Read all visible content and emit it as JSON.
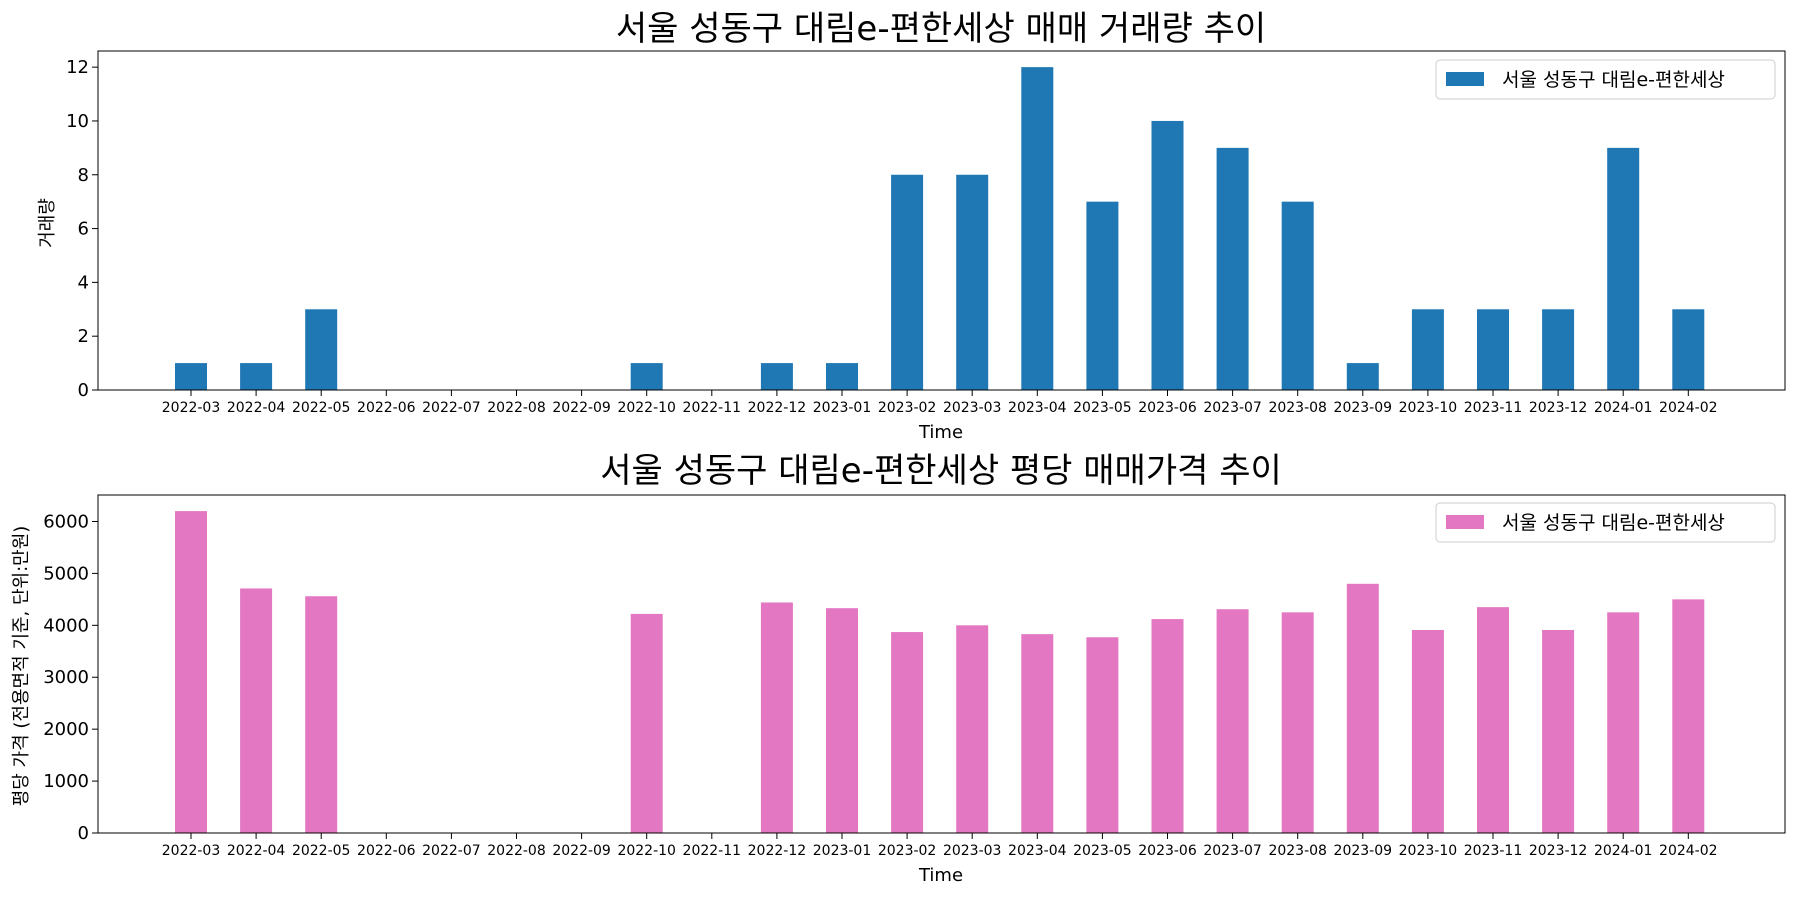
{
  "chart_data": [
    {
      "type": "bar",
      "title": "서울 성동구 대림e-편한세상 매매 거래량 추이",
      "xlabel": "Time",
      "ylabel": "거래량",
      "ylim": [
        0,
        12.6
      ],
      "yticks": [
        0,
        2,
        4,
        6,
        8,
        10,
        12
      ],
      "grid": false,
      "legend_position": "top-right",
      "color": "#1f77b4",
      "categories": [
        "2022-03",
        "2022-04",
        "2022-05",
        "2022-06",
        "2022-07",
        "2022-08",
        "2022-09",
        "2022-10",
        "2022-11",
        "2022-12",
        "2023-01",
        "2023-02",
        "2023-03",
        "2023-04",
        "2023-05",
        "2023-06",
        "2023-07",
        "2023-08",
        "2023-09",
        "2023-10",
        "2023-11",
        "2023-12",
        "2024-01",
        "2024-02"
      ],
      "series": [
        {
          "name": "서울 성동구 대림e-편한세상",
          "values": [
            1,
            1,
            3,
            0,
            0,
            0,
            0,
            1,
            0,
            1,
            1,
            8,
            8,
            12,
            7,
            10,
            9,
            7,
            1,
            3,
            3,
            3,
            9,
            3
          ]
        }
      ]
    },
    {
      "type": "bar",
      "title": "서울 성동구 대림e-편한세상 평당 매매가격 추이",
      "xlabel": "Time",
      "ylabel": "평당 가격 (전용면적 기준, 단위:만원)",
      "ylim": [
        0,
        6510
      ],
      "yticks": [
        0,
        1000,
        2000,
        3000,
        4000,
        5000,
        6000
      ],
      "grid": false,
      "legend_position": "top-right",
      "color": "#e377c2",
      "categories": [
        "2022-03",
        "2022-04",
        "2022-05",
        "2022-06",
        "2022-07",
        "2022-08",
        "2022-09",
        "2022-10",
        "2022-11",
        "2022-12",
        "2023-01",
        "2023-02",
        "2023-03",
        "2023-04",
        "2023-05",
        "2023-06",
        "2023-07",
        "2023-08",
        "2023-09",
        "2023-10",
        "2023-11",
        "2023-12",
        "2024-01",
        "2024-02"
      ],
      "series": [
        {
          "name": "서울 성동구 대림e-편한세상",
          "values": [
            6200,
            4710,
            4560,
            0,
            0,
            0,
            0,
            4220,
            0,
            4440,
            4330,
            3870,
            4000,
            3830,
            3770,
            4120,
            4310,
            4250,
            4800,
            3910,
            4350,
            3910,
            4250,
            4500
          ]
        }
      ]
    }
  ]
}
